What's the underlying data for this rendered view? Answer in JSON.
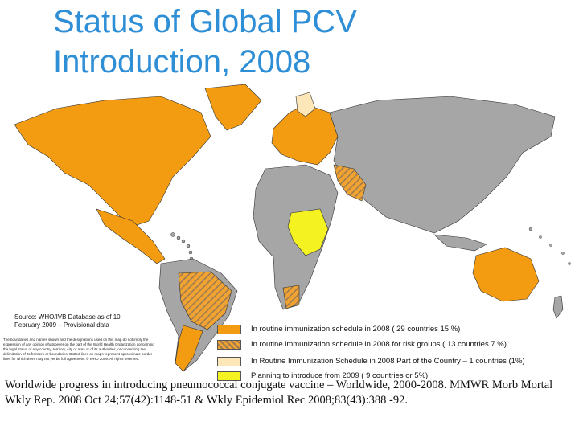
{
  "title": {
    "line1": "Status of Global PCV",
    "line2": "Introduction, 2008"
  },
  "source": "Source: WHO/IVB Database as of 10 February 2009 – Provisional data",
  "disclaimer": "The boundaries and names shown and the designations used on this map do not imply the expression of any opinion whatsoever on the part of the World Health Organization concerning the legal status of any country, territory, city or area or of its authorities, or concerning the delimitation of its frontiers or boundaries. Dotted lines on maps represent approximate border lines for which there may not yet be full agreement. © WHO 2009. All rights reserved.",
  "colors": {
    "ocean": "#ffffff",
    "no_data_gray": "#a6a6a6",
    "routine_orange": "#f39c12",
    "risk_hatch": "#c9893a",
    "part_country": "#fde7b8",
    "planning_yellow": "#f5f221"
  },
  "legend": {
    "items": [
      {
        "label": "In routine immunization schedule in 2008 ( 29 countries 15 %)",
        "swatch": "routine_orange"
      },
      {
        "label": "In routine immunization schedule in 2008 for risk groups ( 13 countries 7 %)",
        "swatch": "risk_hatch"
      },
      {
        "label": "In Routine Immunization Schedule in 2008 Part of the Country – 1 countries (1%)",
        "swatch": "part_country"
      },
      {
        "label": "Planning to introduce from 2009 ( 9 countries or 5%)",
        "swatch": "planning_yellow"
      }
    ]
  },
  "citation": "Worldwide progress in introducing pneumococcal conjugate vaccine – Worldwide, 2000-2008. MMWR Morb Mortal Wkly Rep. 2008 Oct 24;57(42):1148-51 & Wkly Epidemiol Rec 2008;83(43):388 -92."
}
